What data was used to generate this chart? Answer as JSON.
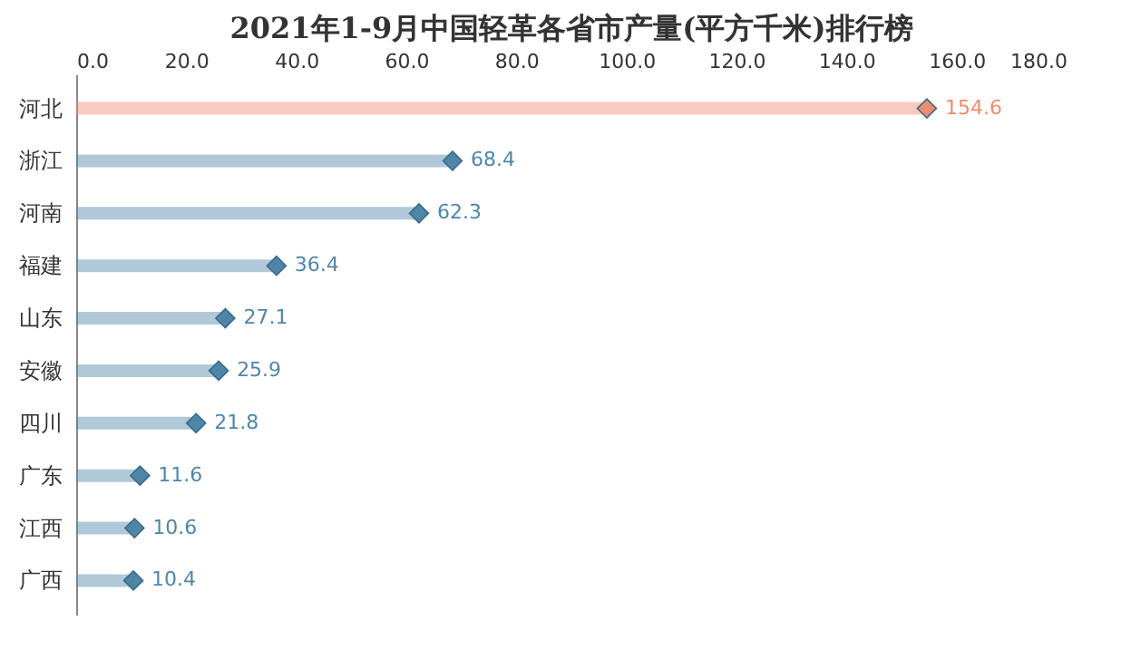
{
  "chart_data": {
    "type": "lollipop",
    "orientation": "horizontal",
    "title": "2021年1-9月中国轻革各省市产量(平方千米)排行榜",
    "categories": [
      "河北",
      "浙江",
      "河南",
      "福建",
      "山东",
      "安徽",
      "四川",
      "广东",
      "江西",
      "广西"
    ],
    "values": [
      154.6,
      68.4,
      62.3,
      36.4,
      27.1,
      25.9,
      21.8,
      11.6,
      10.6,
      10.4
    ],
    "colors": [
      "#f08c6e",
      "#4f86a8",
      "#4f86a8",
      "#4f86a8",
      "#4f86a8",
      "#4f86a8",
      "#4f86a8",
      "#4f86a8",
      "#4f86a8",
      "#4f86a8"
    ],
    "xlim": [
      0,
      180
    ],
    "xticks": [
      {
        "value": 0,
        "label": "0.0"
      },
      {
        "value": 20,
        "label": "20.0"
      },
      {
        "value": 40,
        "label": "40.0"
      },
      {
        "value": 60,
        "label": "60.0"
      },
      {
        "value": 80,
        "label": "80.0"
      },
      {
        "value": 100,
        "label": "100.0"
      },
      {
        "value": 120,
        "label": "120.0"
      },
      {
        "value": 140,
        "label": "140.0"
      },
      {
        "value": 160,
        "label": "160.0"
      },
      {
        "value": 180,
        "label": "180.0"
      }
    ],
    "marker": "diamond",
    "data_labels": true,
    "grid": false
  }
}
